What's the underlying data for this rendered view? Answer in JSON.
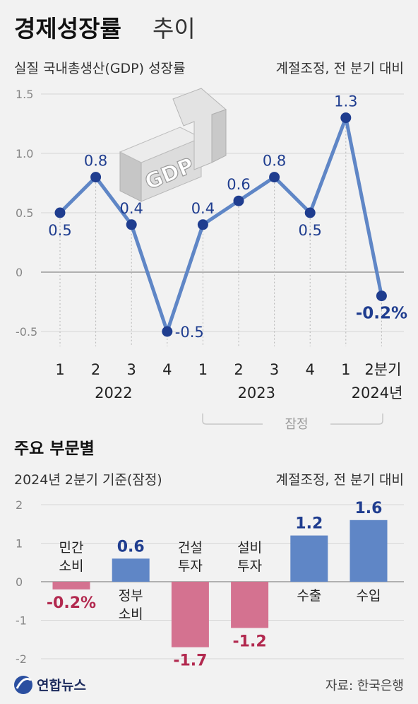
{
  "header": {
    "title_bold": "경제성장률",
    "title_light": "추이"
  },
  "top": {
    "subtitle_left": "실질 국내총생산(GDP) 성장률",
    "subtitle_right": "계절조정, 전 분기 대비",
    "illustration_text": "GDP",
    "preliminary_label": "잠정"
  },
  "bottom": {
    "section_title": "주요 부문별",
    "subtitle_left": "2024년 2분기 기준(잠정)",
    "subtitle_right": "계절조정, 전 분기 대비"
  },
  "footer": {
    "brand": "연합뉴스",
    "source": "자료: 한국은행"
  },
  "colors": {
    "line": "#5f86c6",
    "positive_bar": "#5f86c6",
    "negative_bar": "#d47290",
    "positive_text": "#1f3d8f",
    "negative_text": "#b2294f"
  },
  "chart_data": [
    {
      "type": "line",
      "quarters": [
        "1",
        "2",
        "3",
        "4",
        "1",
        "2",
        "3",
        "4",
        "1",
        "2분기"
      ],
      "years": [
        {
          "label": "2022",
          "start": 0,
          "end": 3
        },
        {
          "label": "2023",
          "start": 4,
          "end": 7
        },
        {
          "label": "2024년",
          "start": 8,
          "end": 9
        }
      ],
      "values": [
        0.5,
        0.8,
        0.4,
        -0.5,
        0.4,
        0.6,
        0.8,
        0.5,
        1.3,
        -0.2
      ],
      "value_labels": [
        "0.5",
        "0.8",
        "0.4",
        "-0.5",
        "0.4",
        "0.6",
        "0.8",
        "0.5",
        "1.3",
        "-0.2%"
      ],
      "label_position": [
        "below",
        "above",
        "above",
        "right",
        "above",
        "above",
        "above",
        "below",
        "above",
        "below"
      ],
      "preliminary_range": [
        4,
        9
      ],
      "yticks": [
        "1.5",
        "1.0",
        "0.5",
        "0",
        "-0.5"
      ],
      "ytick_values": [
        1.5,
        1.0,
        0.5,
        0,
        -0.5
      ],
      "ylim": [
        -0.5,
        1.5
      ],
      "grid": true
    },
    {
      "type": "bar",
      "categories": [
        "민간\n소비",
        "정부\n소비",
        "건설\n투자",
        "설비\n투자",
        "수출",
        "수입"
      ],
      "values": [
        -0.2,
        0.6,
        -1.7,
        -1.2,
        1.2,
        1.6
      ],
      "value_labels": [
        "-0.2%",
        "0.6",
        "-1.7",
        "-1.2",
        "1.2",
        "1.6"
      ],
      "category_label_position": [
        "above",
        "below",
        "above",
        "above",
        "below",
        "below"
      ],
      "yticks": [
        "2",
        "1",
        "0",
        "-1",
        "-2"
      ],
      "ytick_values": [
        2,
        1,
        0,
        -1,
        -2
      ],
      "ylim": [
        -2,
        2
      ]
    }
  ]
}
